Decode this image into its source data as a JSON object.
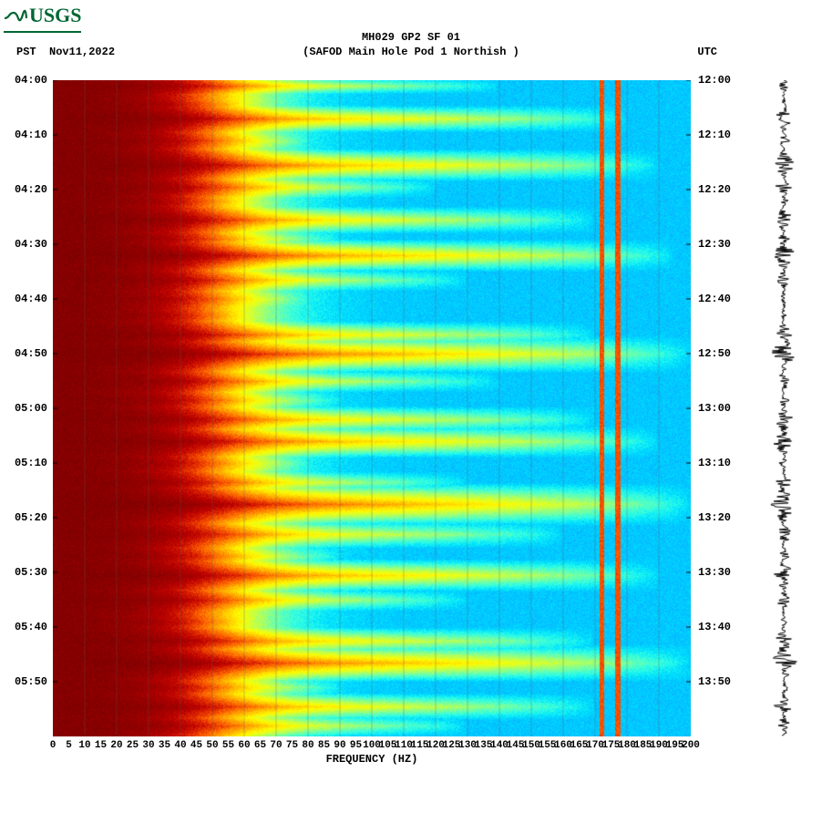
{
  "logo_text": "USGS",
  "header": {
    "title": "MH029 GP2 SF 01",
    "subtitle": "(SAFOD Main Hole Pod 1 Northish )",
    "tz_left": "PST",
    "date": "Nov11,2022",
    "tz_right": "UTC"
  },
  "spectrogram": {
    "type": "heatmap",
    "xlabel": "FREQUENCY (HZ)",
    "xlim": [
      0,
      200
    ],
    "xtick_step": 5,
    "xticks": [
      0,
      5,
      10,
      15,
      20,
      25,
      30,
      35,
      40,
      45,
      50,
      55,
      60,
      65,
      70,
      75,
      80,
      85,
      90,
      95,
      100,
      105,
      110,
      115,
      120,
      125,
      130,
      135,
      140,
      145,
      150,
      155,
      160,
      165,
      170,
      175,
      180,
      185,
      190,
      195,
      200
    ],
    "y_left_label_prefix": "PST",
    "y_right_label_prefix": "UTC",
    "y_ticks_left": [
      "04:00",
      "04:10",
      "04:20",
      "04:30",
      "04:40",
      "04:50",
      "05:00",
      "05:10",
      "05:20",
      "05:30",
      "05:40",
      "05:50"
    ],
    "y_ticks_right": [
      "12:00",
      "12:10",
      "12:20",
      "12:30",
      "12:40",
      "12:50",
      "13:00",
      "13:10",
      "13:20",
      "13:30",
      "13:40",
      "13:50"
    ],
    "y_range_minutes": [
      0,
      120
    ],
    "n_rows": 240,
    "n_cols": 200,
    "colormap": [
      "#7a0000",
      "#8c0000",
      "#a10000",
      "#b80000",
      "#cf1400",
      "#e63400",
      "#f85a00",
      "#ff7e00",
      "#ffa200",
      "#ffc300",
      "#ffe100",
      "#fffb00",
      "#e3ff1e",
      "#c1ff4a",
      "#9bff78",
      "#70ffa6",
      "#44ffd2",
      "#1ef7ef",
      "#00e0ff",
      "#00c4ff",
      "#10a8ff",
      "#2d8cf5",
      "#3f74e6",
      "#4c5ed6"
    ],
    "intensity_model": {
      "base_low_hz_value": 0.02,
      "base_high_hz_value": 0.82,
      "transition_center_hz": 55,
      "transition_width_hz": 45,
      "noise_amp": 0.07,
      "vertical_line_hz": [
        172,
        177
      ],
      "vertical_line_value": 0.25,
      "burst_rows": [
        {
          "t": 2,
          "w": 3,
          "reach": 140,
          "depth": 0.55
        },
        {
          "t": 9,
          "w": 2,
          "reach": 60,
          "depth": 0.35
        },
        {
          "t": 14,
          "w": 5,
          "reach": 180,
          "depth": 0.7
        },
        {
          "t": 22,
          "w": 3,
          "reach": 80,
          "depth": 0.4
        },
        {
          "t": 31,
          "w": 6,
          "reach": 190,
          "depth": 0.75
        },
        {
          "t": 39,
          "w": 4,
          "reach": 120,
          "depth": 0.55
        },
        {
          "t": 44,
          "w": 2,
          "reach": 60,
          "depth": 0.3
        },
        {
          "t": 51,
          "w": 5,
          "reach": 170,
          "depth": 0.65
        },
        {
          "t": 58,
          "w": 3,
          "reach": 90,
          "depth": 0.4
        },
        {
          "t": 64,
          "w": 6,
          "reach": 195,
          "depth": 0.8
        },
        {
          "t": 73,
          "w": 4,
          "reach": 130,
          "depth": 0.55
        },
        {
          "t": 80,
          "w": 3,
          "reach": 80,
          "depth": 0.35
        },
        {
          "t": 86,
          "w": 2,
          "reach": 60,
          "depth": 0.3
        },
        {
          "t": 93,
          "w": 5,
          "reach": 170,
          "depth": 0.65
        },
        {
          "t": 100,
          "w": 7,
          "reach": 200,
          "depth": 0.85
        },
        {
          "t": 110,
          "w": 4,
          "reach": 140,
          "depth": 0.55
        },
        {
          "t": 117,
          "w": 3,
          "reach": 90,
          "depth": 0.4
        },
        {
          "t": 124,
          "w": 5,
          "reach": 170,
          "depth": 0.65
        },
        {
          "t": 132,
          "w": 6,
          "reach": 190,
          "depth": 0.75
        },
        {
          "t": 140,
          "w": 3,
          "reach": 80,
          "depth": 0.35
        },
        {
          "t": 147,
          "w": 4,
          "reach": 130,
          "depth": 0.55
        },
        {
          "t": 155,
          "w": 8,
          "reach": 200,
          "depth": 0.9
        },
        {
          "t": 166,
          "w": 5,
          "reach": 160,
          "depth": 0.6
        },
        {
          "t": 174,
          "w": 3,
          "reach": 90,
          "depth": 0.4
        },
        {
          "t": 181,
          "w": 6,
          "reach": 190,
          "depth": 0.75
        },
        {
          "t": 190,
          "w": 4,
          "reach": 130,
          "depth": 0.55
        },
        {
          "t": 198,
          "w": 2,
          "reach": 60,
          "depth": 0.3
        },
        {
          "t": 205,
          "w": 5,
          "reach": 170,
          "depth": 0.65
        },
        {
          "t": 213,
          "w": 7,
          "reach": 200,
          "depth": 0.85
        },
        {
          "t": 222,
          "w": 3,
          "reach": 90,
          "depth": 0.4
        },
        {
          "t": 229,
          "w": 5,
          "reach": 170,
          "depth": 0.65
        },
        {
          "t": 236,
          "w": 4,
          "reach": 130,
          "depth": 0.55
        }
      ]
    },
    "grid_color": "#555555",
    "grid_vlines_hz": [
      10,
      20,
      30,
      40,
      50,
      60,
      70,
      80,
      90,
      100,
      110,
      120,
      130,
      140,
      150,
      160,
      170,
      180,
      190
    ],
    "background_color": "#ffffff",
    "tick_fontsize": 11,
    "label_fontsize": 12,
    "title_fontsize": 12
  },
  "side_trace": {
    "type": "line",
    "color": "#000000",
    "n_points": 720,
    "amp": 18,
    "line_width": 1,
    "seed_bursts": "same_as_spectrogram"
  }
}
